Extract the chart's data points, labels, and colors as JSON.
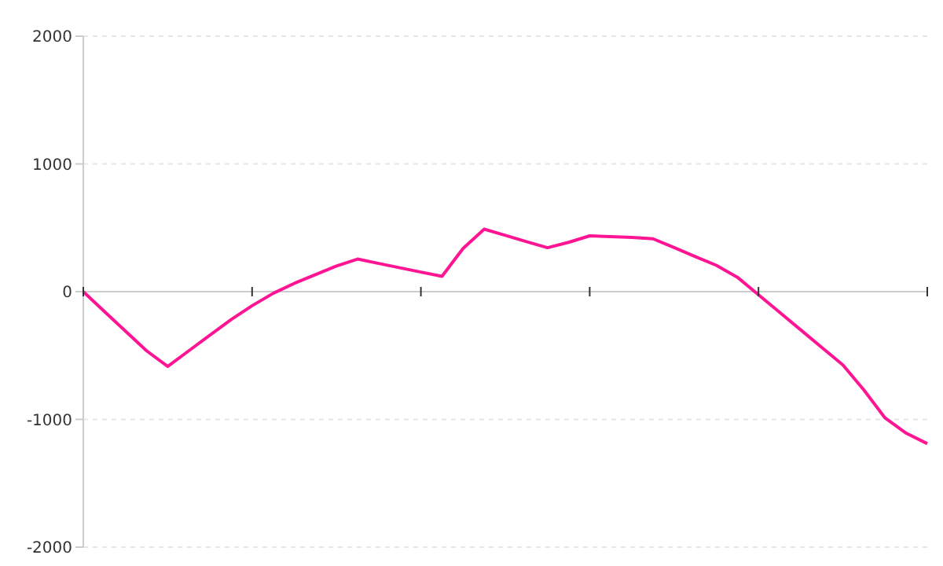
{
  "chart_data": {
    "type": "line",
    "categories": [
      null,
      null,
      null,
      null,
      null,
      null,
      null,
      null,
      null,
      null,
      null,
      null,
      null,
      null,
      null,
      null,
      null,
      null,
      null,
      null,
      null,
      null,
      null,
      null,
      null,
      null,
      null,
      null,
      null,
      null,
      null,
      null,
      null,
      null,
      null,
      null,
      null,
      null,
      null,
      null,
      null
    ],
    "series": [
      {
        "color": "#ff1493",
        "values": [
          0,
          -155,
          -309,
          -463,
          -586,
          -463,
          -341,
          -219,
          -110,
          -13,
          65,
          133,
          201,
          255,
          221,
          187,
          153,
          120,
          338,
          489,
          441,
          392,
          344,
          386,
          437,
          431,
          425,
          414,
          345,
          275,
          206,
          113,
          -25,
          -162,
          -299,
          -437,
          -574,
          -771,
          -989,
          -1108,
          -1190
        ]
      }
    ],
    "ylim": [
      -2000,
      2000
    ],
    "yticks": [
      -2000,
      -1000,
      0,
      1000,
      2000
    ],
    "tick_labels": "y",
    "grid": "y",
    "marker": "none",
    "line_style": "solid"
  }
}
